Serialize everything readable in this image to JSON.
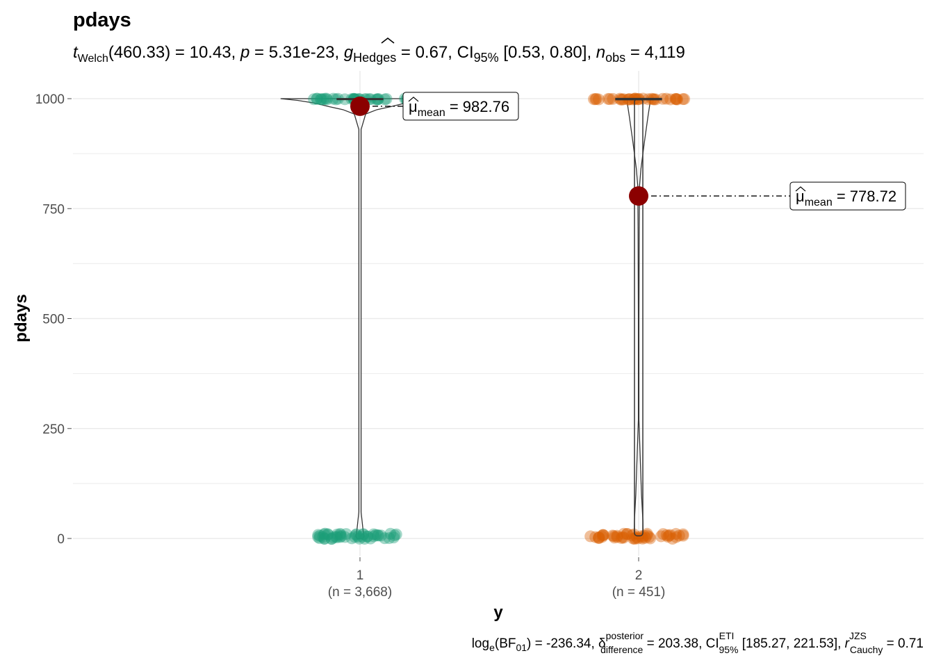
{
  "chart_data": {
    "type": "violin",
    "title": "pdays",
    "subtitle": {
      "t_label": "t",
      "t_sub": "Welch",
      "t_df": "(460.33)",
      "t_value": "10.43",
      "p_label": "p",
      "p_value": "5.31e-23",
      "g_label": "g",
      "g_sub": "Hedges",
      "g_value": "0.67",
      "ci_label": "CI",
      "ci_sub": "95%",
      "ci_value": "[0.53, 0.80]",
      "n_label": "n",
      "n_sub": "obs",
      "n_value": "4,119"
    },
    "xlabel": "y",
    "ylabel": "pdays",
    "ylim": [
      -25,
      1030
    ],
    "yticks": [
      0,
      250,
      500,
      750,
      1000
    ],
    "ytick_labels": [
      "0",
      "250",
      "500",
      "750",
      "1000"
    ],
    "grid": true,
    "groups": [
      {
        "label": "1",
        "n_label": "(n = 3,668)",
        "color": "#1B9E77",
        "mean": 982.76,
        "mean_label": "982.76",
        "median": 999,
        "q1": 999,
        "q3": 999,
        "clusters": [
          {
            "y": 999,
            "x_min": -0.18,
            "x_max": 0.18
          },
          {
            "y": 5,
            "x_min": -0.15,
            "x_max": 0.15
          }
        ]
      },
      {
        "label": "2",
        "n_label": "(n = 451)",
        "color": "#D95F02",
        "mean": 778.72,
        "mean_label": "778.72",
        "median": 999,
        "q1": 6,
        "q3": 999,
        "clusters": [
          {
            "y": 999,
            "x_min": -0.17,
            "x_max": 0.17
          },
          {
            "y": 5,
            "x_min": -0.17,
            "x_max": 0.17
          }
        ]
      }
    ],
    "mean_symbol": "μ",
    "mean_sub": "mean",
    "caption": {
      "bf_label": "log",
      "bf_sub": "e",
      "bf_arg": "BF",
      "bf_arg_sub": "01",
      "bf_value": "-236.34",
      "delta_label": "δ",
      "delta_sup": "posterior",
      "delta_sub": "difference",
      "delta_value": "203.38",
      "ci_label": "CI",
      "ci_sup": "ETI",
      "ci_sub": "95%",
      "ci_value": "[185.27, 221.53]",
      "r_label": "r",
      "r_sup": "JZS",
      "r_sub": "Cauchy",
      "r_value": "0.71"
    },
    "colors": {
      "point_mean": "#8B0000",
      "grid": "#EBEBEB"
    }
  }
}
